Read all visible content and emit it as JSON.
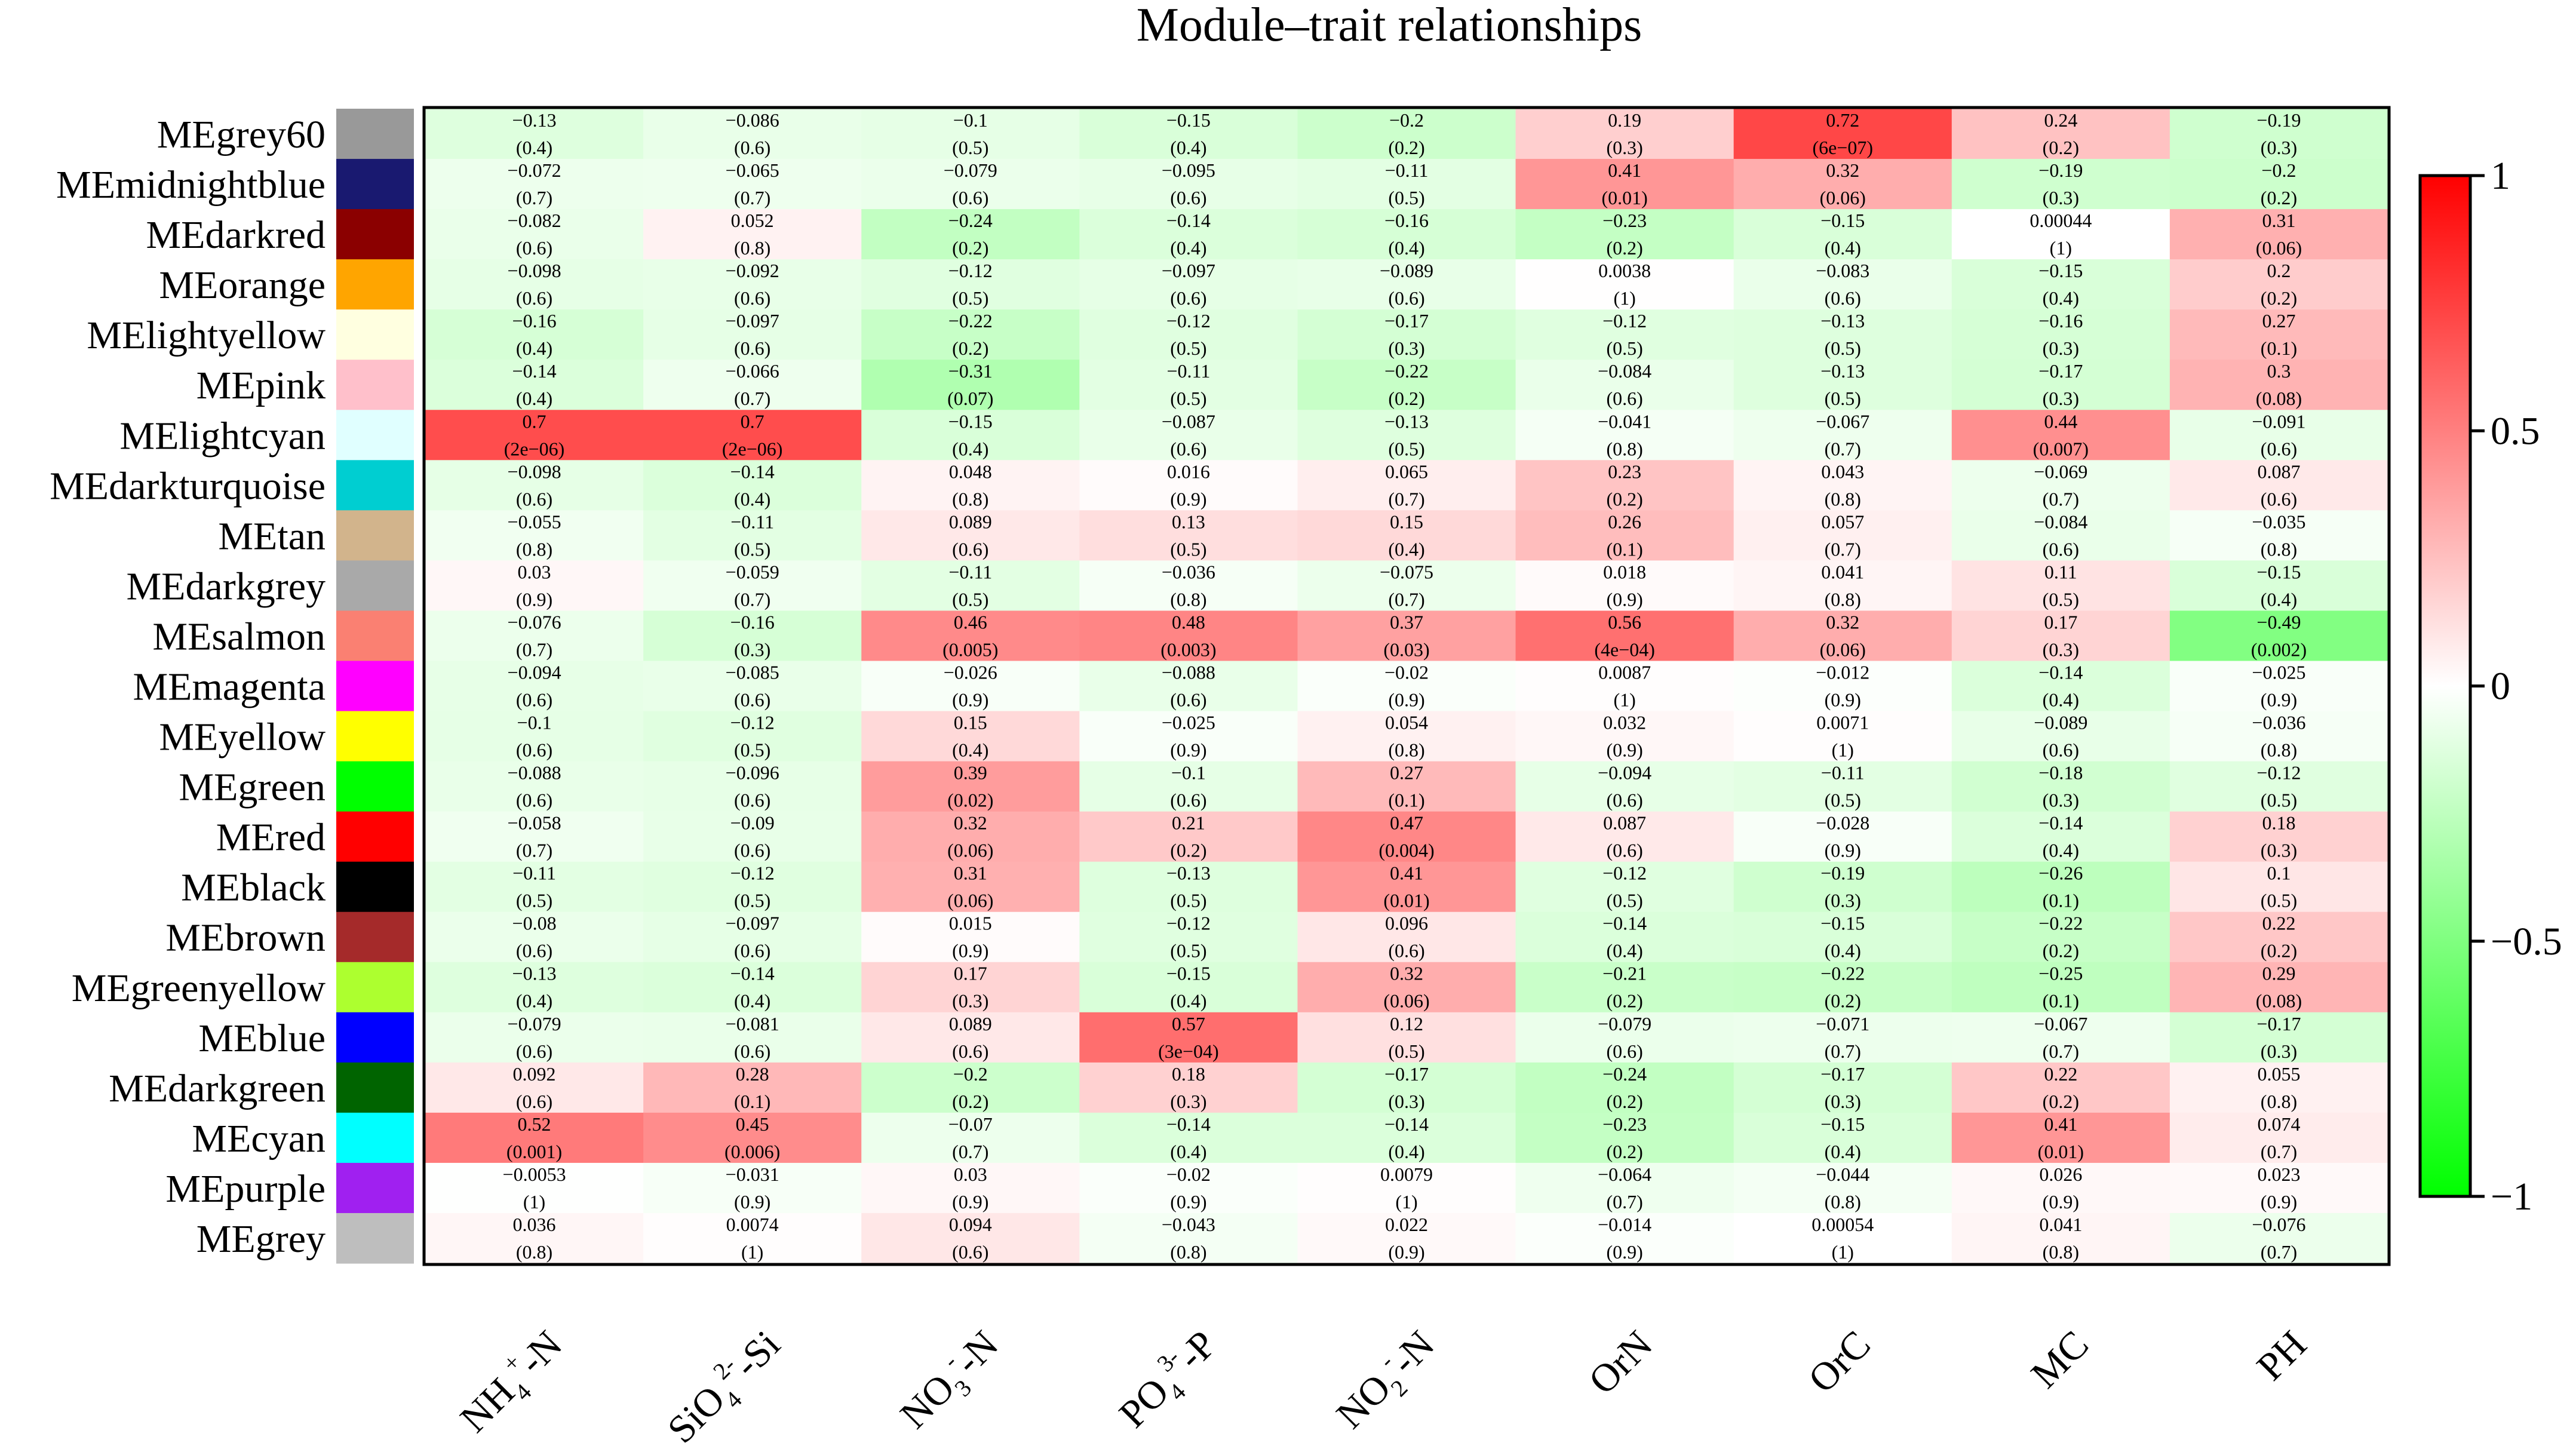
{
  "chart_data": {
    "type": "heatmap",
    "title": "Module‒trait relationships",
    "xlabel": "",
    "ylabel": "",
    "colorscale": {
      "low": "#00ff00",
      "mid": "#ffffff",
      "high": "#ff0000",
      "range": [
        -1,
        1
      ]
    },
    "colorbar_ticks": [
      {
        "value": 1,
        "label": "1"
      },
      {
        "value": 0.5,
        "label": "0.5"
      },
      {
        "value": 0,
        "label": "0"
      },
      {
        "value": -0.5,
        "label": "−0.5"
      },
      {
        "value": -1,
        "label": "−1"
      }
    ],
    "columns": [
      {
        "parts": [
          [
            "NH",
            ""
          ],
          [
            "4",
            "sub"
          ],
          [
            "+",
            "sup"
          ],
          [
            "-N",
            ""
          ]
        ]
      },
      {
        "parts": [
          [
            "SiO",
            ""
          ],
          [
            "4",
            "sub"
          ],
          [
            "2-",
            "sup"
          ],
          [
            "-Si",
            ""
          ]
        ]
      },
      {
        "parts": [
          [
            "NO",
            ""
          ],
          [
            "3",
            "sub"
          ],
          [
            "-",
            "sup"
          ],
          [
            "-N",
            ""
          ]
        ]
      },
      {
        "parts": [
          [
            "PO",
            ""
          ],
          [
            "4",
            "sub"
          ],
          [
            "3-",
            "sup"
          ],
          [
            "-P",
            ""
          ]
        ]
      },
      {
        "parts": [
          [
            "NO",
            ""
          ],
          [
            "2",
            "sub"
          ],
          [
            "-",
            "sup"
          ],
          [
            "-N",
            ""
          ]
        ]
      },
      {
        "parts": [
          [
            "OrN",
            ""
          ]
        ]
      },
      {
        "parts": [
          [
            "OrC",
            ""
          ]
        ]
      },
      {
        "parts": [
          [
            "MC",
            ""
          ]
        ]
      },
      {
        "parts": [
          [
            "PH",
            ""
          ]
        ]
      }
    ],
    "rows": [
      {
        "label": "MEgrey60",
        "color": "#999999",
        "values": [
          -0.13,
          -0.086,
          -0.1,
          -0.15,
          -0.2,
          0.19,
          0.72,
          0.24,
          -0.19
        ],
        "r_text": [
          "−0.13",
          "−0.086",
          "−0.1",
          "−0.15",
          "−0.2",
          "0.19",
          "0.72",
          "0.24",
          "−0.19"
        ],
        "p_text": [
          "(0.4)",
          "(0.6)",
          "(0.5)",
          "(0.4)",
          "(0.2)",
          "(0.3)",
          "(6e−07)",
          "(0.2)",
          "(0.3)"
        ]
      },
      {
        "label": "MEmidnightblue",
        "color": "#191970",
        "values": [
          -0.072,
          -0.065,
          -0.079,
          -0.095,
          -0.11,
          0.41,
          0.32,
          -0.19,
          -0.2
        ],
        "r_text": [
          "−0.072",
          "−0.065",
          "−0.079",
          "−0.095",
          "−0.11",
          "0.41",
          "0.32",
          "−0.19",
          "−0.2"
        ],
        "p_text": [
          "(0.7)",
          "(0.7)",
          "(0.6)",
          "(0.6)",
          "(0.5)",
          "(0.01)",
          "(0.06)",
          "(0.3)",
          "(0.2)"
        ]
      },
      {
        "label": "MEdarkred",
        "color": "#8b0000",
        "values": [
          -0.082,
          0.052,
          -0.24,
          -0.14,
          -0.16,
          -0.23,
          -0.15,
          0.00044,
          0.31
        ],
        "r_text": [
          "−0.082",
          "0.052",
          "−0.24",
          "−0.14",
          "−0.16",
          "−0.23",
          "−0.15",
          "0.00044",
          "0.31"
        ],
        "p_text": [
          "(0.6)",
          "(0.8)",
          "(0.2)",
          "(0.4)",
          "(0.4)",
          "(0.2)",
          "(0.4)",
          "(1)",
          "(0.06)"
        ]
      },
      {
        "label": "MEorange",
        "color": "#ffa500",
        "values": [
          -0.098,
          -0.092,
          -0.12,
          -0.097,
          -0.089,
          0.0038,
          -0.083,
          -0.15,
          0.2
        ],
        "r_text": [
          "−0.098",
          "−0.092",
          "−0.12",
          "−0.097",
          "−0.089",
          "0.0038",
          "−0.083",
          "−0.15",
          "0.2"
        ],
        "p_text": [
          "(0.6)",
          "(0.6)",
          "(0.5)",
          "(0.6)",
          "(0.6)",
          "(1)",
          "(0.6)",
          "(0.4)",
          "(0.2)"
        ]
      },
      {
        "label": "MElightyellow",
        "color": "#ffffe0",
        "values": [
          -0.16,
          -0.097,
          -0.22,
          -0.12,
          -0.17,
          -0.12,
          -0.13,
          -0.16,
          0.27
        ],
        "r_text": [
          "−0.16",
          "−0.097",
          "−0.22",
          "−0.12",
          "−0.17",
          "−0.12",
          "−0.13",
          "−0.16",
          "0.27"
        ],
        "p_text": [
          "(0.4)",
          "(0.6)",
          "(0.2)",
          "(0.5)",
          "(0.3)",
          "(0.5)",
          "(0.5)",
          "(0.3)",
          "(0.1)"
        ]
      },
      {
        "label": "MEpink",
        "color": "#ffc0cb",
        "values": [
          -0.14,
          -0.066,
          -0.31,
          -0.11,
          -0.22,
          -0.084,
          -0.13,
          -0.17,
          0.3
        ],
        "r_text": [
          "−0.14",
          "−0.066",
          "−0.31",
          "−0.11",
          "−0.22",
          "−0.084",
          "−0.13",
          "−0.17",
          "0.3"
        ],
        "p_text": [
          "(0.4)",
          "(0.7)",
          "(0.07)",
          "(0.5)",
          "(0.2)",
          "(0.6)",
          "(0.5)",
          "(0.3)",
          "(0.08)"
        ]
      },
      {
        "label": "MElightcyan",
        "color": "#e0ffff",
        "values": [
          0.7,
          0.7,
          -0.15,
          -0.087,
          -0.13,
          -0.041,
          -0.067,
          0.44,
          -0.091
        ],
        "r_text": [
          "0.7",
          "0.7",
          "−0.15",
          "−0.087",
          "−0.13",
          "−0.041",
          "−0.067",
          "0.44",
          "−0.091"
        ],
        "p_text": [
          "(2e−06)",
          "(2e−06)",
          "(0.4)",
          "(0.6)",
          "(0.5)",
          "(0.8)",
          "(0.7)",
          "(0.007)",
          "(0.6)"
        ]
      },
      {
        "label": "MEdarkturquoise",
        "color": "#00ced1",
        "values": [
          -0.098,
          -0.14,
          0.048,
          0.016,
          0.065,
          0.23,
          0.043,
          -0.069,
          0.087
        ],
        "r_text": [
          "−0.098",
          "−0.14",
          "0.048",
          "0.016",
          "0.065",
          "0.23",
          "0.043",
          "−0.069",
          "0.087"
        ],
        "p_text": [
          "(0.6)",
          "(0.4)",
          "(0.8)",
          "(0.9)",
          "(0.7)",
          "(0.2)",
          "(0.8)",
          "(0.7)",
          "(0.6)"
        ]
      },
      {
        "label": "MEtan",
        "color": "#d2b48c",
        "values": [
          -0.055,
          -0.11,
          0.089,
          0.13,
          0.15,
          0.26,
          0.057,
          -0.084,
          -0.035
        ],
        "r_text": [
          "−0.055",
          "−0.11",
          "0.089",
          "0.13",
          "0.15",
          "0.26",
          "0.057",
          "−0.084",
          "−0.035"
        ],
        "p_text": [
          "(0.8)",
          "(0.5)",
          "(0.6)",
          "(0.5)",
          "(0.4)",
          "(0.1)",
          "(0.7)",
          "(0.6)",
          "(0.8)"
        ]
      },
      {
        "label": "MEdarkgrey",
        "color": "#a9a9a9",
        "values": [
          0.03,
          -0.059,
          -0.11,
          -0.036,
          -0.075,
          0.018,
          0.041,
          0.11,
          -0.15
        ],
        "r_text": [
          "0.03",
          "−0.059",
          "−0.11",
          "−0.036",
          "−0.075",
          "0.018",
          "0.041",
          "0.11",
          "−0.15"
        ],
        "p_text": [
          "(0.9)",
          "(0.7)",
          "(0.5)",
          "(0.8)",
          "(0.7)",
          "(0.9)",
          "(0.8)",
          "(0.5)",
          "(0.4)"
        ]
      },
      {
        "label": "MEsalmon",
        "color": "#fa8072",
        "values": [
          -0.076,
          -0.16,
          0.46,
          0.48,
          0.37,
          0.56,
          0.32,
          0.17,
          -0.49
        ],
        "r_text": [
          "−0.076",
          "−0.16",
          "0.46",
          "0.48",
          "0.37",
          "0.56",
          "0.32",
          "0.17",
          "−0.49"
        ],
        "p_text": [
          "(0.7)",
          "(0.3)",
          "(0.005)",
          "(0.003)",
          "(0.03)",
          "(4e−04)",
          "(0.06)",
          "(0.3)",
          "(0.002)"
        ]
      },
      {
        "label": "MEmagenta",
        "color": "#ff00ff",
        "values": [
          -0.094,
          -0.085,
          -0.026,
          -0.088,
          -0.02,
          0.0087,
          -0.012,
          -0.14,
          -0.025
        ],
        "r_text": [
          "−0.094",
          "−0.085",
          "−0.026",
          "−0.088",
          "−0.02",
          "0.0087",
          "−0.012",
          "−0.14",
          "−0.025"
        ],
        "p_text": [
          "(0.6)",
          "(0.6)",
          "(0.9)",
          "(0.6)",
          "(0.9)",
          "(1)",
          "(0.9)",
          "(0.4)",
          "(0.9)"
        ]
      },
      {
        "label": "MEyellow",
        "color": "#ffff00",
        "values": [
          -0.1,
          -0.12,
          0.15,
          -0.025,
          0.054,
          0.032,
          0.0071,
          -0.089,
          -0.036
        ],
        "r_text": [
          "−0.1",
          "−0.12",
          "0.15",
          "−0.025",
          "0.054",
          "0.032",
          "0.0071",
          "−0.089",
          "−0.036"
        ],
        "p_text": [
          "(0.6)",
          "(0.5)",
          "(0.4)",
          "(0.9)",
          "(0.8)",
          "(0.9)",
          "(1)",
          "(0.6)",
          "(0.8)"
        ]
      },
      {
        "label": "MEgreen",
        "color": "#00ff00",
        "values": [
          -0.088,
          -0.096,
          0.39,
          -0.1,
          0.27,
          -0.094,
          -0.11,
          -0.18,
          -0.12
        ],
        "r_text": [
          "−0.088",
          "−0.096",
          "0.39",
          "−0.1",
          "0.27",
          "−0.094",
          "−0.11",
          "−0.18",
          "−0.12"
        ],
        "p_text": [
          "(0.6)",
          "(0.6)",
          "(0.02)",
          "(0.6)",
          "(0.1)",
          "(0.6)",
          "(0.5)",
          "(0.3)",
          "(0.5)"
        ]
      },
      {
        "label": "MEred",
        "color": "#ff0000",
        "values": [
          -0.058,
          -0.09,
          0.32,
          0.21,
          0.47,
          0.087,
          -0.028,
          -0.14,
          0.18
        ],
        "r_text": [
          "−0.058",
          "−0.09",
          "0.32",
          "0.21",
          "0.47",
          "0.087",
          "−0.028",
          "−0.14",
          "0.18"
        ],
        "p_text": [
          "(0.7)",
          "(0.6)",
          "(0.06)",
          "(0.2)",
          "(0.004)",
          "(0.6)",
          "(0.9)",
          "(0.4)",
          "(0.3)"
        ]
      },
      {
        "label": "MEblack",
        "color": "#000000",
        "values": [
          -0.11,
          -0.12,
          0.31,
          -0.13,
          0.41,
          -0.12,
          -0.19,
          -0.26,
          0.1
        ],
        "r_text": [
          "−0.11",
          "−0.12",
          "0.31",
          "−0.13",
          "0.41",
          "−0.12",
          "−0.19",
          "−0.26",
          "0.1"
        ],
        "p_text": [
          "(0.5)",
          "(0.5)",
          "(0.06)",
          "(0.5)",
          "(0.01)",
          "(0.5)",
          "(0.3)",
          "(0.1)",
          "(0.5)"
        ]
      },
      {
        "label": "MEbrown",
        "color": "#a52a2a",
        "values": [
          -0.08,
          -0.097,
          0.015,
          -0.12,
          0.096,
          -0.14,
          -0.15,
          -0.22,
          0.22
        ],
        "r_text": [
          "−0.08",
          "−0.097",
          "0.015",
          "−0.12",
          "0.096",
          "−0.14",
          "−0.15",
          "−0.22",
          "0.22"
        ],
        "p_text": [
          "(0.6)",
          "(0.6)",
          "(0.9)",
          "(0.5)",
          "(0.6)",
          "(0.4)",
          "(0.4)",
          "(0.2)",
          "(0.2)"
        ]
      },
      {
        "label": "MEgreenyellow",
        "color": "#adff2f",
        "values": [
          -0.13,
          -0.14,
          0.17,
          -0.15,
          0.32,
          -0.21,
          -0.22,
          -0.25,
          0.29
        ],
        "r_text": [
          "−0.13",
          "−0.14",
          "0.17",
          "−0.15",
          "0.32",
          "−0.21",
          "−0.22",
          "−0.25",
          "0.29"
        ],
        "p_text": [
          "(0.4)",
          "(0.4)",
          "(0.3)",
          "(0.4)",
          "(0.06)",
          "(0.2)",
          "(0.2)",
          "(0.1)",
          "(0.08)"
        ]
      },
      {
        "label": "MEblue",
        "color": "#0000ff",
        "values": [
          -0.079,
          -0.081,
          0.089,
          0.57,
          0.12,
          -0.079,
          -0.071,
          -0.067,
          -0.17
        ],
        "r_text": [
          "−0.079",
          "−0.081",
          "0.089",
          "0.57",
          "0.12",
          "−0.079",
          "−0.071",
          "−0.067",
          "−0.17"
        ],
        "p_text": [
          "(0.6)",
          "(0.6)",
          "(0.6)",
          "(3e−04)",
          "(0.5)",
          "(0.6)",
          "(0.7)",
          "(0.7)",
          "(0.3)"
        ]
      },
      {
        "label": "MEdarkgreen",
        "color": "#006400",
        "values": [
          0.092,
          0.28,
          -0.2,
          0.18,
          -0.17,
          -0.24,
          -0.17,
          0.22,
          0.055
        ],
        "r_text": [
          "0.092",
          "0.28",
          "−0.2",
          "0.18",
          "−0.17",
          "−0.24",
          "−0.17",
          "0.22",
          "0.055"
        ],
        "p_text": [
          "(0.6)",
          "(0.1)",
          "(0.2)",
          "(0.3)",
          "(0.3)",
          "(0.2)",
          "(0.3)",
          "(0.2)",
          "(0.8)"
        ]
      },
      {
        "label": "MEcyan",
        "color": "#00ffff",
        "values": [
          0.52,
          0.45,
          -0.07,
          -0.14,
          -0.14,
          -0.23,
          -0.15,
          0.41,
          0.074
        ],
        "r_text": [
          "0.52",
          "0.45",
          "−0.07",
          "−0.14",
          "−0.14",
          "−0.23",
          "−0.15",
          "0.41",
          "0.074"
        ],
        "p_text": [
          "(0.001)",
          "(0.006)",
          "(0.7)",
          "(0.4)",
          "(0.4)",
          "(0.2)",
          "(0.4)",
          "(0.01)",
          "(0.7)"
        ]
      },
      {
        "label": "MEpurple",
        "color": "#a020f0",
        "values": [
          -0.0053,
          -0.031,
          0.03,
          -0.02,
          0.0079,
          -0.064,
          -0.044,
          0.026,
          0.023
        ],
        "r_text": [
          "−0.0053",
          "−0.031",
          "0.03",
          "−0.02",
          "0.0079",
          "−0.064",
          "−0.044",
          "0.026",
          "0.023"
        ],
        "p_text": [
          "(1)",
          "(0.9)",
          "(0.9)",
          "(0.9)",
          "(1)",
          "(0.7)",
          "(0.8)",
          "(0.9)",
          "(0.9)"
        ]
      },
      {
        "label": "MEgrey",
        "color": "#bebebe",
        "values": [
          0.036,
          0.0074,
          0.094,
          -0.043,
          0.022,
          -0.014,
          0.00054,
          0.041,
          -0.076
        ],
        "r_text": [
          "0.036",
          "0.0074",
          "0.094",
          "−0.043",
          "0.022",
          "−0.014",
          "0.00054",
          "0.041",
          "−0.076"
        ],
        "p_text": [
          "(0.8)",
          "(1)",
          "(0.6)",
          "(0.8)",
          "(0.9)",
          "(0.9)",
          "(1)",
          "(0.8)",
          "(0.7)"
        ]
      }
    ]
  }
}
